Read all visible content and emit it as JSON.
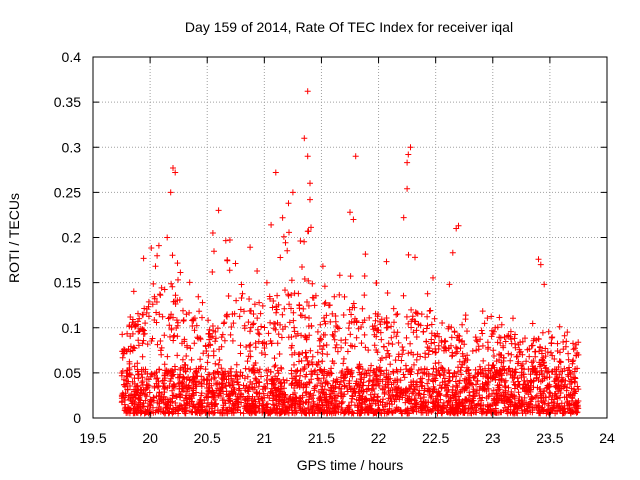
{
  "chart_data": {
    "type": "scatter",
    "title": "Day 159 of 2014, Rate Of TEC Index for receiver iqal",
    "xlabel": "GPS time / hours",
    "ylabel": "ROTI / TECUs",
    "xlim": [
      19.5,
      24
    ],
    "ylim": [
      0,
      0.4
    ],
    "xticks": [
      "19.5",
      "20",
      "20.5",
      "21",
      "21.5",
      "22",
      "22.5",
      "23",
      "23.5",
      "24"
    ],
    "yticks": [
      "0",
      "0.05",
      "0.1",
      "0.15",
      "0.2",
      "0.25",
      "0.3",
      "0.35",
      "0.4"
    ],
    "grid": true,
    "marker": "+",
    "color": "#ff0000",
    "x_range_observed": [
      19.75,
      23.75
    ],
    "outliers": [
      {
        "x": 21.38,
        "y": 0.362
      },
      {
        "x": 21.35,
        "y": 0.31
      },
      {
        "x": 21.38,
        "y": 0.29
      },
      {
        "x": 21.8,
        "y": 0.29
      },
      {
        "x": 22.28,
        "y": 0.3
      },
      {
        "x": 22.26,
        "y": 0.292
      },
      {
        "x": 22.25,
        "y": 0.283
      },
      {
        "x": 20.2,
        "y": 0.277
      },
      {
        "x": 20.22,
        "y": 0.272
      },
      {
        "x": 21.1,
        "y": 0.272
      },
      {
        "x": 21.4,
        "y": 0.26
      },
      {
        "x": 22.25,
        "y": 0.254
      },
      {
        "x": 21.25,
        "y": 0.25
      },
      {
        "x": 20.18,
        "y": 0.25
      },
      {
        "x": 21.4,
        "y": 0.242
      },
      {
        "x": 20.6,
        "y": 0.23
      },
      {
        "x": 21.75,
        "y": 0.228
      },
      {
        "x": 22.22,
        "y": 0.222
      },
      {
        "x": 21.78,
        "y": 0.22
      },
      {
        "x": 22.7,
        "y": 0.213
      },
      {
        "x": 22.68,
        "y": 0.21
      },
      {
        "x": 20.55,
        "y": 0.205
      },
      {
        "x": 20.15,
        "y": 0.2
      },
      {
        "x": 22.65,
        "y": 0.183
      },
      {
        "x": 23.4,
        "y": 0.176
      },
      {
        "x": 23.42,
        "y": 0.17
      },
      {
        "x": 22.62,
        "y": 0.148
      },
      {
        "x": 23.45,
        "y": 0.148
      }
    ],
    "series": [
      {
        "name": "ROTI",
        "density_profile": [
          {
            "x": 19.75,
            "base_max": 0.1,
            "peak": 0.1
          },
          {
            "x": 19.95,
            "base_max": 0.12,
            "peak": 0.19
          },
          {
            "x": 20.1,
            "base_max": 0.14,
            "peak": 0.21
          },
          {
            "x": 20.4,
            "base_max": 0.12,
            "peak": 0.19
          },
          {
            "x": 20.55,
            "base_max": 0.1,
            "peak": 0.2
          },
          {
            "x": 20.8,
            "base_max": 0.12,
            "peak": 0.2
          },
          {
            "x": 21.0,
            "base_max": 0.13,
            "peak": 0.22
          },
          {
            "x": 21.2,
            "base_max": 0.14,
            "peak": 0.25
          },
          {
            "x": 21.4,
            "base_max": 0.13,
            "peak": 0.24
          },
          {
            "x": 21.6,
            "base_max": 0.12,
            "peak": 0.2
          },
          {
            "x": 21.8,
            "base_max": 0.12,
            "peak": 0.21
          },
          {
            "x": 22.0,
            "base_max": 0.11,
            "peak": 0.17
          },
          {
            "x": 22.2,
            "base_max": 0.12,
            "peak": 0.2
          },
          {
            "x": 22.4,
            "base_max": 0.11,
            "peak": 0.17
          },
          {
            "x": 22.6,
            "base_max": 0.1,
            "peak": 0.14
          },
          {
            "x": 22.8,
            "base_max": 0.1,
            "peak": 0.13
          },
          {
            "x": 23.0,
            "base_max": 0.1,
            "peak": 0.12
          },
          {
            "x": 23.2,
            "base_max": 0.09,
            "peak": 0.11
          },
          {
            "x": 23.4,
            "base_max": 0.09,
            "peak": 0.12
          },
          {
            "x": 23.6,
            "base_max": 0.08,
            "peak": 0.1
          },
          {
            "x": 23.75,
            "base_max": 0.08,
            "peak": 0.09
          }
        ],
        "floor": 0.005
      }
    ]
  }
}
